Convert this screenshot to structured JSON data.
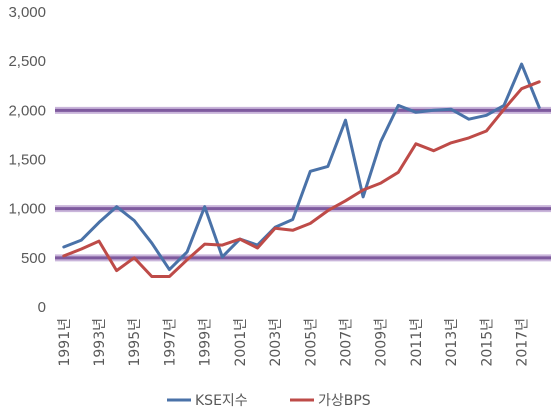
{
  "chart_data": {
    "type": "line",
    "title": "",
    "xlabel": "",
    "ylabel": "",
    "x": [
      "1991년",
      "1992년",
      "1993년",
      "1994년",
      "1995년",
      "1996년",
      "1997년",
      "1998년",
      "1999년",
      "2000년",
      "2001년",
      "2002년",
      "2003년",
      "2004년",
      "2005년",
      "2006년",
      "2007년",
      "2008년",
      "2009년",
      "2010년",
      "2011년",
      "2012년",
      "2013년",
      "2014년",
      "2015년",
      "2016년",
      "2017년",
      "2018년"
    ],
    "x_tick_labels": [
      "1991년",
      "1993년",
      "1995년",
      "1997년",
      "1999년",
      "2001년",
      "2003년",
      "2005년",
      "2007년",
      "2009년",
      "2011년",
      "2013년",
      "2015년",
      "2017년"
    ],
    "y_ticks": [
      "0",
      "500",
      "1,000",
      "1,500",
      "2,000",
      "2,500",
      "3,000"
    ],
    "ylim": [
      0,
      3000
    ],
    "grid": false,
    "reference_lines": [
      500,
      1000,
      2000
    ],
    "legend_position": "bottom",
    "series": [
      {
        "name": "KSE지수",
        "color": "#4A72A8",
        "values": [
          610,
          680,
          860,
          1020,
          880,
          650,
          380,
          560,
          1020,
          510,
          690,
          630,
          810,
          890,
          1380,
          1430,
          1900,
          1120,
          1680,
          2050,
          1980,
          2000,
          2010,
          1910,
          1950,
          2050,
          2470,
          2030
        ]
      },
      {
        "name": "가상BPS",
        "color": "#BE4B48",
        "values": [
          520,
          590,
          670,
          370,
          500,
          310,
          310,
          480,
          640,
          630,
          690,
          600,
          800,
          780,
          850,
          980,
          1080,
          1190,
          1260,
          1370,
          1660,
          1590,
          1670,
          1720,
          1790,
          2010,
          2220,
          2290
        ]
      }
    ]
  }
}
